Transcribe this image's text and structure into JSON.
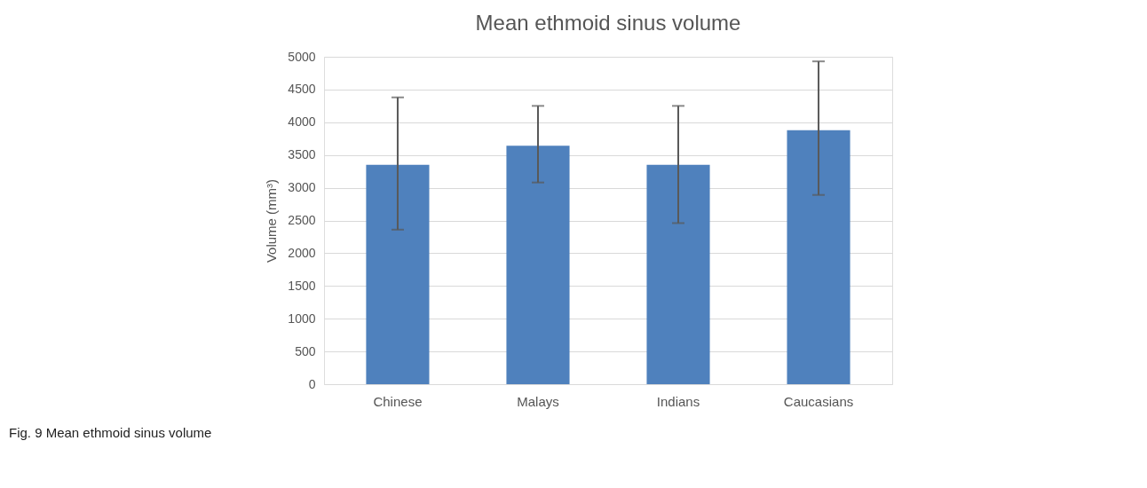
{
  "chart_data": {
    "type": "bar",
    "title": "Mean ethmoid sinus volume",
    "ylabel": "Volume (mm³)",
    "categories": [
      "Chinese",
      "Malays",
      "Indians",
      "Caucasians"
    ],
    "values": [
      3350,
      3640,
      3350,
      3880
    ],
    "errors": [
      [
        2360,
        4380
      ],
      [
        3080,
        4250
      ],
      [
        2460,
        4250
      ],
      [
        2890,
        4930
      ]
    ],
    "color": "#4f81bd",
    "ylim": [
      0,
      5000
    ],
    "yticks": [
      0,
      500,
      1000,
      1500,
      2000,
      2500,
      3000,
      3500,
      4000,
      4500,
      5000
    ],
    "grid": "y",
    "annotations": [
      "Fig. 9 Mean ethmoid sinus volume"
    ]
  }
}
